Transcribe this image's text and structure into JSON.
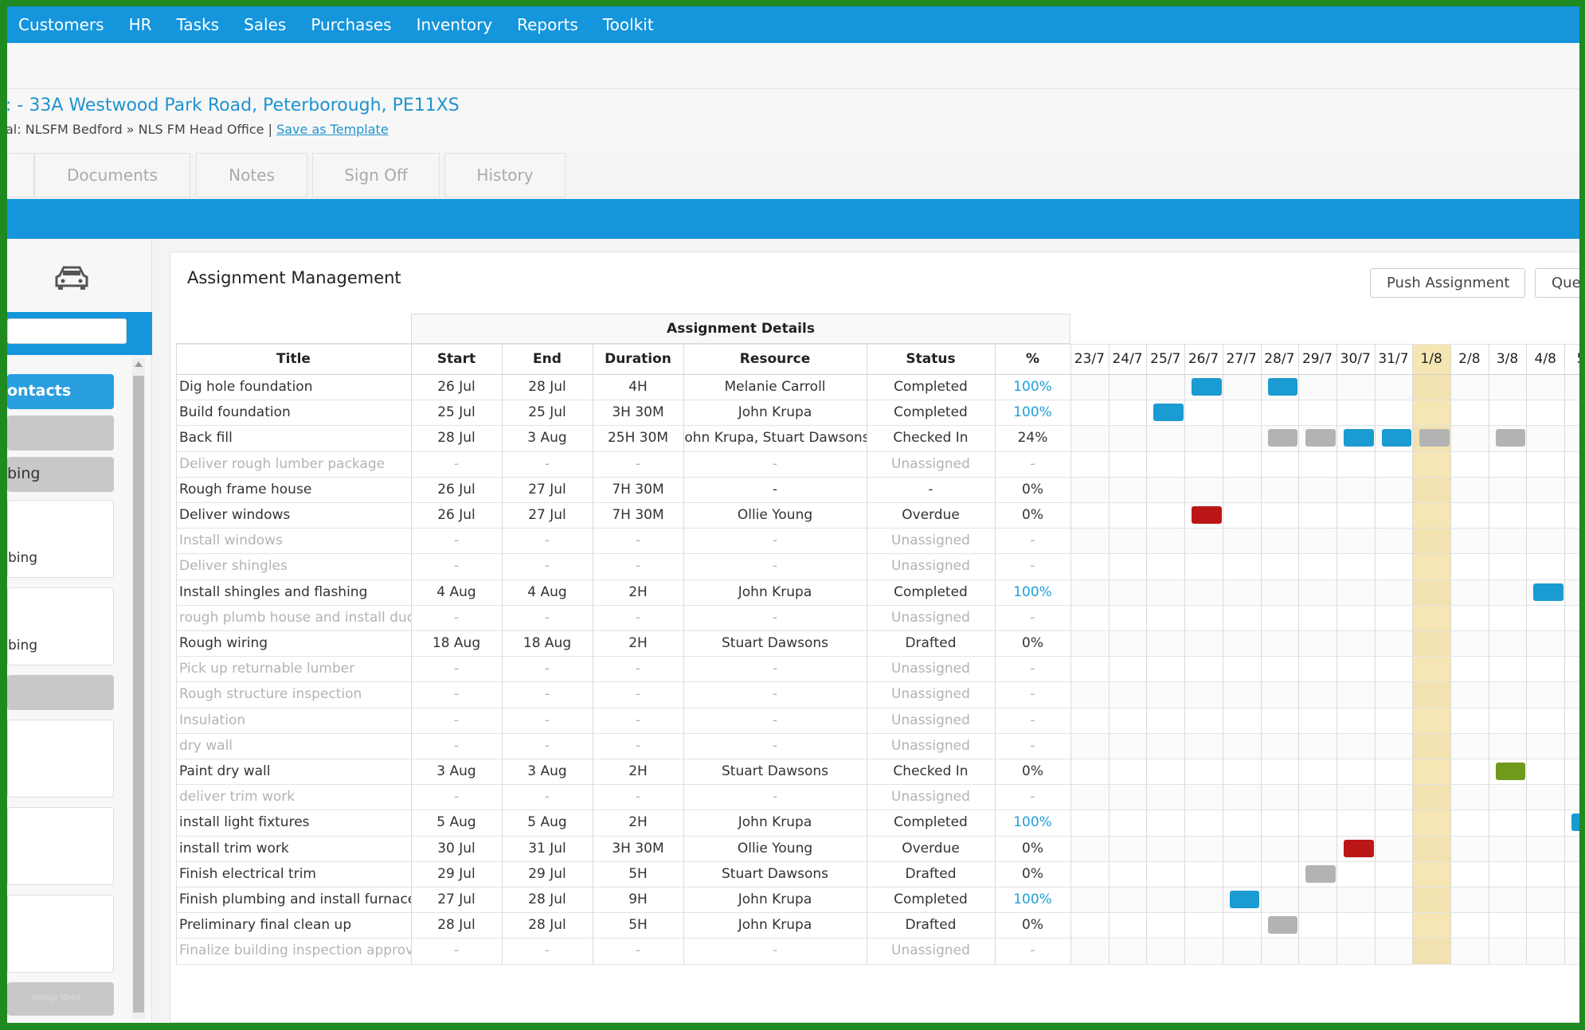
{
  "nav": {
    "items": [
      "Customers",
      "HR",
      "Tasks",
      "Sales",
      "Purchases",
      "Inventory",
      "Reports",
      "Toolkit"
    ]
  },
  "job": {
    "title": ": - 33A Westwood Park Road, Peterborough, PE11XS",
    "breadcrumb": "al: NLSFM Bedford » NLS FM Head Office | ",
    "save_template": "Save as Template"
  },
  "tabs": [
    "Documents",
    "Notes",
    "Sign Off",
    "History"
  ],
  "sidebar": {
    "contacts_label": "ontacts",
    "section_label": "bing",
    "sub1": "bing",
    "sub2": "bing",
    "footer": "Vintage Ideen"
  },
  "panel": {
    "title": "Assignment Management",
    "push_button": "Push Assignment",
    "queue_button": "Que"
  },
  "table": {
    "group_header": "Assignment Details",
    "columns": [
      "Title",
      "Start",
      "End",
      "Duration",
      "Resource",
      "Status",
      "%"
    ],
    "dates": [
      "23/7",
      "24/7",
      "25/7",
      "26/7",
      "27/7",
      "28/7",
      "29/7",
      "30/7",
      "31/7",
      "1/8",
      "2/8",
      "3/8",
      "4/8",
      "5/"
    ],
    "rows": [
      {
        "title": "Dig hole foundation",
        "start": "26 Jul",
        "end": "28 Jul",
        "duration": "4H",
        "resource": "Melanie Carroll",
        "status": "Completed",
        "pct": "100%",
        "muted": false,
        "pct_blue": true
      },
      {
        "title": "Build foundation",
        "start": "25 Jul",
        "end": "25 Jul",
        "duration": "3H 30M",
        "resource": "John Krupa",
        "status": "Completed",
        "pct": "100%",
        "muted": false,
        "pct_blue": true
      },
      {
        "title": "Back fill",
        "start": "28 Jul",
        "end": "3 Aug",
        "duration": "25H 30M",
        "resource": "John Krupa, Stuart Dawsons",
        "status": "Checked In",
        "pct": "24%",
        "muted": false,
        "pct_blue": false
      },
      {
        "title": "Deliver rough lumber package",
        "start": "-",
        "end": "-",
        "duration": "-",
        "resource": "-",
        "status": "Unassigned",
        "pct": "-",
        "muted": true,
        "pct_blue": false
      },
      {
        "title": "Rough frame house",
        "start": "26 Jul",
        "end": "27 Jul",
        "duration": "7H 30M",
        "resource": "-",
        "status": "-",
        "pct": "0%",
        "muted": false,
        "pct_blue": false
      },
      {
        "title": "Deliver windows",
        "start": "26 Jul",
        "end": "27 Jul",
        "duration": "7H 30M",
        "resource": "Ollie Young",
        "status": "Overdue",
        "pct": "0%",
        "muted": false,
        "pct_blue": false
      },
      {
        "title": "Install windows",
        "start": "-",
        "end": "-",
        "duration": "-",
        "resource": "-",
        "status": "Unassigned",
        "pct": "-",
        "muted": true,
        "pct_blue": false
      },
      {
        "title": "Deliver shingles",
        "start": "-",
        "end": "-",
        "duration": "-",
        "resource": "-",
        "status": "Unassigned",
        "pct": "-",
        "muted": true,
        "pct_blue": false
      },
      {
        "title": "Install shingles and flashing",
        "start": "4 Aug",
        "end": "4 Aug",
        "duration": "2H",
        "resource": "John Krupa",
        "status": "Completed",
        "pct": "100%",
        "muted": false,
        "pct_blue": true
      },
      {
        "title": "rough plumb house and install duct",
        "start": "-",
        "end": "-",
        "duration": "-",
        "resource": "-",
        "status": "Unassigned",
        "pct": "-",
        "muted": true,
        "pct_blue": false
      },
      {
        "title": "Rough wiring",
        "start": "18 Aug",
        "end": "18 Aug",
        "duration": "2H",
        "resource": "Stuart Dawsons",
        "status": "Drafted",
        "pct": "0%",
        "muted": false,
        "pct_blue": false
      },
      {
        "title": "Pick up returnable lumber",
        "start": "-",
        "end": "-",
        "duration": "-",
        "resource": "-",
        "status": "Unassigned",
        "pct": "-",
        "muted": true,
        "pct_blue": false
      },
      {
        "title": "Rough structure inspection",
        "start": "-",
        "end": "-",
        "duration": "-",
        "resource": "-",
        "status": "Unassigned",
        "pct": "-",
        "muted": true,
        "pct_blue": false
      },
      {
        "title": "Insulation",
        "start": "-",
        "end": "-",
        "duration": "-",
        "resource": "-",
        "status": "Unassigned",
        "pct": "-",
        "muted": true,
        "pct_blue": false
      },
      {
        "title": "dry wall",
        "start": "-",
        "end": "-",
        "duration": "-",
        "resource": "-",
        "status": "Unassigned",
        "pct": "-",
        "muted": true,
        "pct_blue": false
      },
      {
        "title": "Paint dry wall",
        "start": "3 Aug",
        "end": "3 Aug",
        "duration": "2H",
        "resource": "Stuart Dawsons",
        "status": "Checked In",
        "pct": "0%",
        "muted": false,
        "pct_blue": false
      },
      {
        "title": "deliver trim work",
        "start": "-",
        "end": "-",
        "duration": "-",
        "resource": "-",
        "status": "Unassigned",
        "pct": "-",
        "muted": true,
        "pct_blue": false
      },
      {
        "title": "install light fixtures",
        "start": "5 Aug",
        "end": "5 Aug",
        "duration": "2H",
        "resource": "John Krupa",
        "status": "Completed",
        "pct": "100%",
        "muted": false,
        "pct_blue": true
      },
      {
        "title": "install trim work",
        "start": "30 Jul",
        "end": "31 Jul",
        "duration": "3H 30M",
        "resource": "Ollie Young",
        "status": "Overdue",
        "pct": "0%",
        "muted": false,
        "pct_blue": false
      },
      {
        "title": "Finish electrical trim",
        "start": "29 Jul",
        "end": "29 Jul",
        "duration": "5H",
        "resource": "Stuart Dawsons",
        "status": "Drafted",
        "pct": "0%",
        "muted": false,
        "pct_blue": false
      },
      {
        "title": "Finish plumbing and install furnace",
        "start": "27 Jul",
        "end": "28 Jul",
        "duration": "9H",
        "resource": "John Krupa",
        "status": "Completed",
        "pct": "100%",
        "muted": false,
        "pct_blue": true
      },
      {
        "title": "Preliminary final clean up",
        "start": "28 Jul",
        "end": "28 Jul",
        "duration": "5H",
        "resource": "John Krupa",
        "status": "Drafted",
        "pct": "0%",
        "muted": false,
        "pct_blue": false
      },
      {
        "title": "Finalize building inspection approva",
        "start": "-",
        "end": "-",
        "duration": "-",
        "resource": "-",
        "status": "Unassigned",
        "pct": "-",
        "muted": true,
        "pct_blue": false
      }
    ],
    "gantt": [
      {
        "row": 0,
        "col": 3,
        "color": "blue"
      },
      {
        "row": 0,
        "col": 5,
        "color": "blue"
      },
      {
        "row": 1,
        "col": 2,
        "color": "blue"
      },
      {
        "row": 2,
        "col": 5,
        "color": "gray"
      },
      {
        "row": 2,
        "col": 6,
        "color": "gray"
      },
      {
        "row": 2,
        "col": 7,
        "color": "blue"
      },
      {
        "row": 2,
        "col": 8,
        "color": "blue"
      },
      {
        "row": 2,
        "col": 9,
        "color": "gray"
      },
      {
        "row": 2,
        "col": 11,
        "color": "gray"
      },
      {
        "row": 5,
        "col": 3,
        "color": "red"
      },
      {
        "row": 8,
        "col": 12,
        "color": "blue"
      },
      {
        "row": 15,
        "col": 11,
        "color": "green"
      },
      {
        "row": 17,
        "col": 13,
        "color": "blue"
      },
      {
        "row": 18,
        "col": 7,
        "color": "red"
      },
      {
        "row": 19,
        "col": 6,
        "color": "gray"
      },
      {
        "row": 20,
        "col": 4,
        "color": "blue"
      },
      {
        "row": 21,
        "col": 5,
        "color": "gray"
      }
    ],
    "today_col": 9
  }
}
